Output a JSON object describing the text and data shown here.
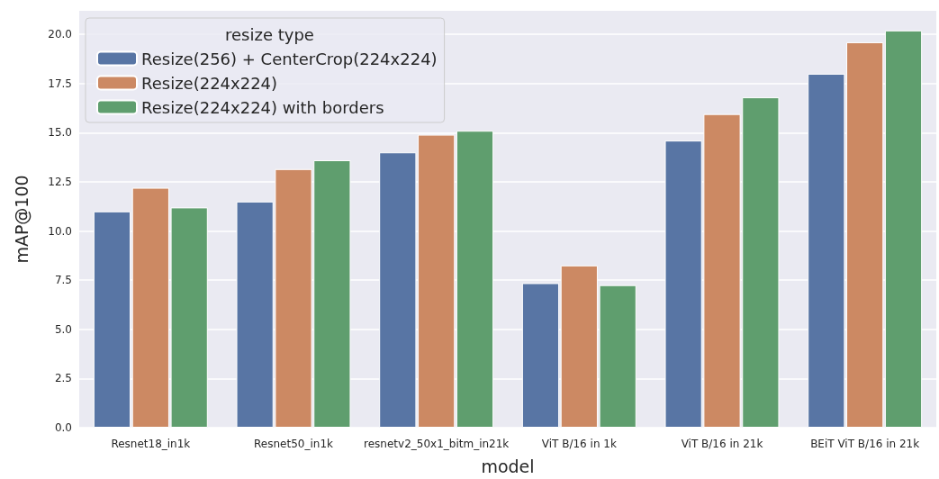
{
  "chart_data": {
    "type": "bar",
    "xlabel": "model",
    "ylabel": "mAP@100",
    "legend_title": "resize type",
    "categories": [
      "Resnet18_in1k",
      "Resnet50_in1k",
      "resnetv2_50x1_bitm_in21k",
      "ViT B/16 in 1k",
      "ViT B/16 in 21k",
      "BEiT ViT B/16 in 21k"
    ],
    "series": [
      {
        "name": "Resize(256) + CenterCrop(224x224)",
        "color": "#5875a4",
        "values": [
          11.0,
          11.5,
          14.0,
          7.35,
          14.6,
          18.0
        ]
      },
      {
        "name": "Resize(224x224)",
        "color": "#cc8963",
        "values": [
          12.2,
          13.15,
          14.9,
          8.25,
          15.95,
          19.6
        ]
      },
      {
        "name": "Resize(224x224) with borders",
        "color": "#5f9e6e",
        "values": [
          11.2,
          13.6,
          15.1,
          7.25,
          16.8,
          20.2
        ]
      }
    ],
    "ylim": [
      0,
      21.2
    ],
    "yticks": [
      {
        "value": 0,
        "label": "0.0"
      },
      {
        "value": 2.5,
        "label": "2.5"
      },
      {
        "value": 5,
        "label": "5.0"
      },
      {
        "value": 7.5,
        "label": "7.5"
      },
      {
        "value": 10,
        "label": "10.0"
      },
      {
        "value": 12.5,
        "label": "12.5"
      },
      {
        "value": 15,
        "label": "15.0"
      },
      {
        "value": 17.5,
        "label": "17.5"
      },
      {
        "value": 20,
        "label": "20.0"
      }
    ],
    "grid": "y",
    "legend": "top left"
  }
}
